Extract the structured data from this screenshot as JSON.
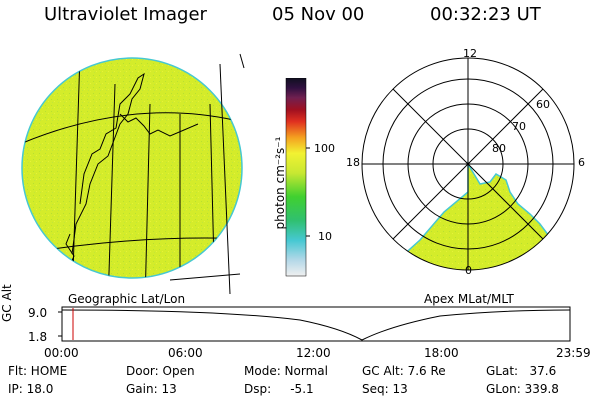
{
  "header": {
    "instrument": "Ultraviolet Imager",
    "date": "05 Nov 00",
    "time": "00:32:23 UT"
  },
  "colorbar": {
    "label": "photon cm⁻²s⁻¹",
    "ticks": [
      "100",
      "10"
    ]
  },
  "left_panel": {
    "caption": "Geographic Lat/Lon"
  },
  "right_panel": {
    "caption": "Apex MLat/MLT",
    "mlt_labels": {
      "top": "12",
      "left": "18",
      "right": "6",
      "bottom": "0"
    },
    "lat_labels": [
      "60",
      "70",
      "80"
    ]
  },
  "orbit_plot": {
    "ylabel": "GC Alt",
    "y_ticks": [
      "9.0",
      "1.8"
    ],
    "x_ticks": [
      "00:00",
      "06:00",
      "12:00",
      "18:00",
      "23:59"
    ]
  },
  "info": {
    "flt": "Flt: HOME",
    "ip": "IP: 18.0",
    "door": "Door: Open",
    "gain": "Gain: 13",
    "mode": "Mode: Normal",
    "dsp": "Dsp:     -5.1",
    "gc_alt": "GC Alt: 7.6 Re",
    "seq": "Seq: 13",
    "glat": "GLat:   37.6",
    "glon": "GLon: 339.8"
  },
  "colors": {
    "aurora": "#d4ec2a",
    "rim": "#46c8d2",
    "marker": "#cc0000"
  }
}
